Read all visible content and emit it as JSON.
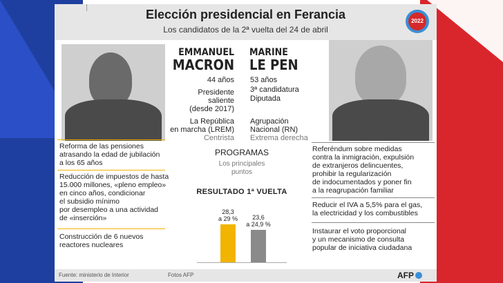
{
  "header": {
    "title": "Elección presidencial en Ferancia",
    "subtitle": "Los candidatos de la 2ª vuelta del 24 de abril",
    "badge": "2022"
  },
  "macron": {
    "first": "EMMANUEL",
    "last": "MACRON",
    "age": "44 años",
    "role_1": "Presidente",
    "role_2": "saliente",
    "role_3": "(desde 2017)",
    "party_1": "La República",
    "party_2": "en marcha (LREM)",
    "leaning": "Centrista",
    "program": [
      {
        "l1": "Reforma de las pensiones",
        "l2": "atrasando la edad de jubilación",
        "l3": "a los 65 años"
      },
      {
        "l1": "Reducción de impuestos de hasta",
        "l2": "15.000 millones, «pleno empleo»",
        "l3": "en cinco años, condicionar",
        "l4": "el subsidio mínimo",
        "l5": "por desempleo a una actividad",
        "l6": "de «inserción»"
      },
      {
        "l1": "Construcción de 6 nuevos",
        "l2": "reactores nucleares"
      }
    ]
  },
  "lepen": {
    "first": "MARINE",
    "last": "LE PEN",
    "age": "53 años",
    "role_1": "3ª candidatura",
    "role_2": "Diputada",
    "party_1": "Agrupación",
    "party_2": "Nacional (RN)",
    "leaning": "Extrema derecha",
    "program": [
      {
        "l1": "Referéndum sobre medidas",
        "l2": "contra la inmigración, expulsión",
        "l3": "de extranjeros delincuentes,",
        "l4": "prohibir la regularización",
        "l5": "de indocumentados y poner fin",
        "l6": "a la reagrupación familiar"
      },
      {
        "l1": "Reducir el IVA a 5,5% para el gas,",
        "l2": "la electricidad y los combustibles"
      },
      {
        "l1": "Instaurar el voto proporcional",
        "l2": "y un mecanismo de consulta",
        "l3": "popular de iniciativa ciudadana"
      }
    ]
  },
  "programs": {
    "title": "PROGRAMAS",
    "sub_1": "Los principales",
    "sub_2": "puntos"
  },
  "results": {
    "title": "RESULTADO 1ª VUELTA",
    "macron_label_1": "28,3",
    "macron_label_2": "a 29 %",
    "lepen_label_1": "23,6",
    "lepen_label_2": "a 24,9 %"
  },
  "chart_data": {
    "type": "bar",
    "title": "RESULTADO 1ª VUELTA",
    "categories": [
      "",
      ""
    ],
    "values": [
      29,
      24.9
    ],
    "ranges": [
      [
        28.3,
        29
      ],
      [
        23.6,
        24.9
      ]
    ],
    "colors": [
      "#f2b400",
      "#8a8a8a"
    ],
    "ylim": [
      0,
      35
    ]
  },
  "footer": {
    "source": "Fuente: ministerio de Interior",
    "photos": "Fotos AFP",
    "logo": "AFP"
  },
  "colors": {
    "macron": "#f2b400",
    "lepen": "#8a8a8a",
    "flag_blue": "#1f3fa0",
    "flag_red": "#d9262c"
  }
}
